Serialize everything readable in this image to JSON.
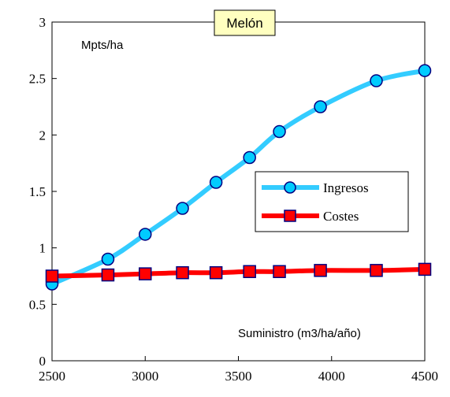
{
  "chart_data": {
    "type": "line",
    "title": "Melón",
    "ylabel": "Mpts/ha",
    "xlabel": "Suministro (m3/ha/año)",
    "xlim": [
      2500,
      4500
    ],
    "ylim": [
      0,
      3
    ],
    "xticks": [
      2500,
      3000,
      3500,
      4000,
      4500
    ],
    "yticks": [
      0,
      0.5,
      1,
      1.5,
      2,
      2.5,
      3
    ],
    "grid": false,
    "legend_position": "center-right",
    "colors": {
      "title_box_fill": "#ffffc0",
      "ingresos_line": "#33ccff",
      "ingresos_marker": "#00ccff",
      "costes_line": "#ff0000",
      "costes_marker": "#ff0000",
      "marker_edge": "#000080"
    },
    "series": [
      {
        "name": "Ingresos",
        "marker": "circle",
        "x": [
          2500,
          2800,
          3000,
          3200,
          3380,
          3560,
          3720,
          3940,
          4240,
          4500
        ],
        "y": [
          0.68,
          0.9,
          1.12,
          1.35,
          1.58,
          1.8,
          2.03,
          2.25,
          2.48,
          2.57
        ]
      },
      {
        "name": "Costes",
        "marker": "square",
        "x": [
          2500,
          2800,
          3000,
          3200,
          3380,
          3560,
          3720,
          3940,
          4240,
          4500
        ],
        "y": [
          0.75,
          0.76,
          0.77,
          0.78,
          0.78,
          0.79,
          0.79,
          0.8,
          0.8,
          0.81
        ]
      }
    ]
  }
}
